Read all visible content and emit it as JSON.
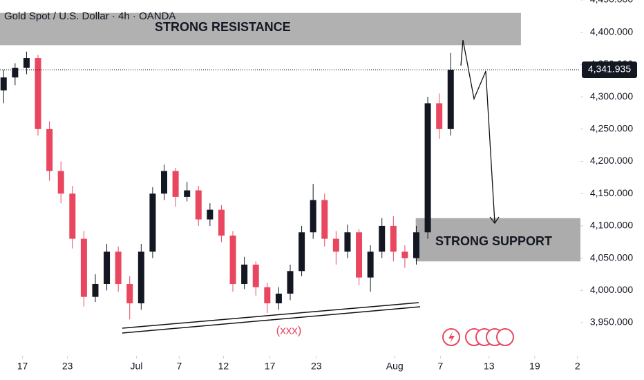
{
  "chart_data": {
    "type": "candlestick",
    "title": "Gold Spot / U.S. Dollar · 4h · OANDA",
    "x": [
      0.5,
      2.08,
      3.66,
      5.24,
      6.82,
      8.4,
      9.98,
      11.56,
      13.14,
      14.72,
      16.3,
      17.88,
      19.46,
      21.04,
      22.62,
      24.2,
      25.78,
      27.36,
      28.94,
      30.52,
      32.1,
      33.68,
      35.26,
      36.84,
      38.42,
      40,
      41.58,
      43.16,
      44.74,
      46.32,
      47.9,
      49.48,
      51.06,
      52.64,
      54.22,
      55.8,
      57.38,
      58.96,
      60.54,
      62.12
    ],
    "open": [
      4310,
      4330,
      4345,
      4360,
      4250,
      4185,
      4150,
      4080,
      3990,
      4010,
      4060,
      4010,
      3980,
      4060,
      4150,
      4185,
      4145,
      4155,
      4110,
      4125,
      4085,
      4010,
      4040,
      4005,
      3980,
      3995,
      4030,
      4090,
      4140,
      4080,
      4060,
      4090,
      4020,
      4060,
      4100,
      4060,
      4050,
      4090,
      4290,
      4250
    ],
    "high": [
      4342,
      4352,
      4370,
      4365,
      4262,
      4200,
      4162,
      4092,
      4025,
      4072,
      4068,
      4022,
      4072,
      4160,
      4195,
      4190,
      4168,
      4162,
      4135,
      4132,
      4092,
      4052,
      4045,
      4012,
      4005,
      4040,
      4100,
      4165,
      4150,
      4092,
      4102,
      4095,
      4070,
      4112,
      4115,
      4070,
      4100,
      4300,
      4305,
      4368
    ],
    "low": [
      4290,
      4318,
      4335,
      4240,
      4170,
      4135,
      4065,
      3975,
      3982,
      4000,
      3998,
      3955,
      3970,
      4050,
      4140,
      4130,
      4138,
      4100,
      4100,
      4075,
      3998,
      4002,
      3992,
      3965,
      3970,
      3985,
      4022,
      4080,
      4068,
      4040,
      4050,
      4008,
      3998,
      4050,
      4045,
      4035,
      4040,
      4080,
      4235,
      4240
    ],
    "close": [
      4330,
      4345,
      4360,
      4250,
      4185,
      4150,
      4080,
      3990,
      4010,
      4060,
      4010,
      3980,
      4060,
      4150,
      4185,
      4145,
      4155,
      4110,
      4125,
      4085,
      4010,
      4040,
      4005,
      3980,
      3995,
      4030,
      4090,
      4140,
      4080,
      4060,
      4090,
      4020,
      4060,
      4100,
      4060,
      4050,
      4090,
      4290,
      4250,
      4342
    ],
    "up_color": "#131722",
    "down_color": "#e8475f",
    "xlim": [
      0,
      80
    ],
    "xticks": [
      {
        "value": 3.1,
        "label": "17"
      },
      {
        "value": 9.3,
        "label": "23"
      },
      {
        "value": 18.8,
        "label": "Jul"
      },
      {
        "value": 24.7,
        "label": "7"
      },
      {
        "value": 30.8,
        "label": "12"
      },
      {
        "value": 37.2,
        "label": "17"
      },
      {
        "value": 43.6,
        "label": "23"
      },
      {
        "value": 54.4,
        "label": "Aug"
      },
      {
        "value": 60.7,
        "label": "7"
      },
      {
        "value": 67.4,
        "label": "13"
      },
      {
        "value": 73.7,
        "label": "19"
      },
      {
        "value": 79.6,
        "label": "2"
      }
    ],
    "ylim": [
      3904,
      4450
    ],
    "yticks": [
      {
        "value": 3950,
        "label": "3,950.000"
      },
      {
        "value": 4000,
        "label": "4,000.000"
      },
      {
        "value": 4050,
        "label": "4,050.000"
      },
      {
        "value": 4100,
        "label": "4,100.000"
      },
      {
        "value": 4150,
        "label": "4,150.000"
      },
      {
        "value": 4200,
        "label": "4,200.000"
      },
      {
        "value": 4250,
        "label": "4,250.000"
      },
      {
        "value": 4300,
        "label": "4,300.000"
      },
      {
        "value": 4350,
        "label": "4,350.000"
      },
      {
        "value": 4400,
        "label": "4,400.000"
      },
      {
        "value": 4450,
        "label": "4,450.000"
      }
    ],
    "last_price": {
      "value": 4341.935,
      "label": "4,341.935"
    },
    "zones": [
      {
        "label": "STRONG RESISTANCE",
        "low": 4380,
        "high": 4430,
        "x0": 0,
        "x1": 71.8
      },
      {
        "label": "STRONG SUPPORT",
        "low": 4045,
        "high": 4112,
        "x0": 57.3,
        "x1": 80
      }
    ],
    "annotation": "(xxx)"
  }
}
